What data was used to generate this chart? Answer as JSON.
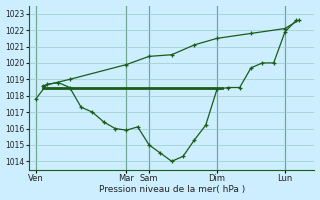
{
  "xlabel": "Pression niveau de la mer( hPa )",
  "bg_color": "#cceeff",
  "grid_color": "#99cccc",
  "line_color": "#1a5c1a",
  "ylim": [
    1013.5,
    1023.5
  ],
  "yticks": [
    1014,
    1015,
    1016,
    1017,
    1018,
    1019,
    1020,
    1021,
    1022,
    1023
  ],
  "day_labels": [
    "Ven",
    "Mar",
    "Sam",
    "Dim",
    "Lun"
  ],
  "day_x": [
    0,
    4,
    5,
    8,
    11
  ],
  "xlim": [
    -0.3,
    12.3
  ],
  "horiz_line_y": 1018.5,
  "horiz_line_x": [
    0.3,
    8.2
  ],
  "upper_line_x": [
    0.3,
    1.5,
    4.0,
    5.0,
    6.0,
    7.0,
    8.0,
    9.5,
    11.0,
    11.6
  ],
  "upper_line_y": [
    1018.6,
    1019.0,
    1019.9,
    1020.4,
    1020.5,
    1021.1,
    1021.5,
    1021.8,
    1022.1,
    1022.6
  ],
  "wavy_line_x": [
    0.0,
    0.5,
    1.0,
    1.5,
    2.0,
    2.5,
    3.0,
    3.5,
    4.0,
    4.5,
    5.0,
    5.5,
    6.0,
    6.5,
    7.0,
    7.5,
    8.0,
    8.5,
    9.0,
    9.5,
    10.0,
    10.5,
    11.0,
    11.5
  ],
  "wavy_line_y": [
    1017.8,
    1018.7,
    1018.8,
    1018.5,
    1017.3,
    1017.0,
    1016.4,
    1016.0,
    1015.9,
    1016.1,
    1015.0,
    1014.5,
    1014.0,
    1014.3,
    1015.3,
    1016.2,
    1018.4,
    1018.5,
    1018.5,
    1019.7,
    1020.0,
    1020.0,
    1021.9,
    1022.6
  ]
}
